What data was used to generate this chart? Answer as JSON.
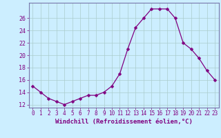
{
  "hours": [
    0,
    1,
    2,
    3,
    4,
    5,
    6,
    7,
    8,
    9,
    10,
    11,
    12,
    13,
    14,
    15,
    16,
    17,
    18,
    19,
    20,
    21,
    22,
    23
  ],
  "values": [
    15,
    14,
    13,
    12.5,
    12,
    12.5,
    13,
    13.5,
    13.5,
    14,
    15,
    17,
    21,
    24.5,
    26,
    27.5,
    27.5,
    27.5,
    26,
    22,
    21,
    19.5,
    17.5,
    16
  ],
  "line_color": "#800080",
  "marker": "D",
  "marker_size": 2.5,
  "bg_color": "#cceeff",
  "grid_color": "#aacccc",
  "xlabel": "Windchill (Refroidissement éolien,°C)",
  "xlabel_color": "#800080",
  "tick_color": "#800080",
  "ylim": [
    11.5,
    28.5
  ],
  "yticks": [
    12,
    14,
    16,
    18,
    20,
    22,
    24,
    26
  ],
  "xlim": [
    -0.5,
    23.5
  ],
  "xticks": [
    0,
    1,
    2,
    3,
    4,
    5,
    6,
    7,
    8,
    9,
    10,
    11,
    12,
    13,
    14,
    15,
    16,
    17,
    18,
    19,
    20,
    21,
    22,
    23
  ],
  "xtick_labels": [
    "0",
    "1",
    "2",
    "3",
    "4",
    "5",
    "6",
    "7",
    "8",
    "9",
    "10",
    "11",
    "12",
    "13",
    "14",
    "15",
    "16",
    "17",
    "18",
    "19",
    "20",
    "21",
    "22",
    "23"
  ],
  "spine_color": "#7777aa",
  "xlabel_fontsize": 6.5,
  "xtick_fontsize": 5.5,
  "ytick_fontsize": 6.0
}
